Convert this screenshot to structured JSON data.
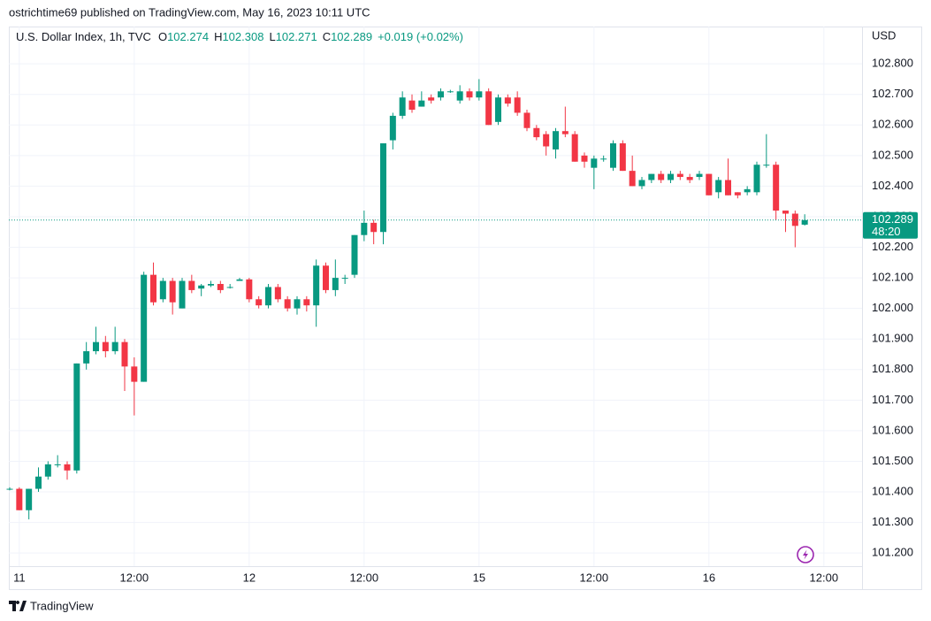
{
  "header": {
    "publisher": "ostrichtime69 published on TradingView.com, May 16, 2023 10:11 UTC"
  },
  "footer": {
    "brand": "TradingView"
  },
  "chart_data": {
    "type": "candlestick",
    "title": "U.S. Dollar Index, 1h, TVC",
    "ohlc_legend": [
      {
        "key": "O",
        "value": 102.274
      },
      {
        "key": "H",
        "value": 102.308
      },
      {
        "key": "L",
        "value": 102.271
      },
      {
        "key": "C",
        "value": 102.289
      }
    ],
    "change": "+0.019 (+0.02%)",
    "currency": "USD",
    "last_price": 102.289,
    "countdown": "48:20",
    "up_color": "#089981",
    "down_color": "#f23645",
    "grid": true,
    "categories": [
      null,
      "11",
      null,
      null,
      null,
      null,
      null,
      null,
      null,
      null,
      null,
      null,
      null,
      "12:00",
      null,
      null,
      null,
      null,
      null,
      null,
      null,
      null,
      null,
      null,
      null,
      "12",
      null,
      null,
      null,
      null,
      null,
      null,
      null,
      null,
      null,
      null,
      null,
      "12:00",
      null,
      null,
      null,
      null,
      null,
      null,
      null,
      null,
      null,
      null,
      null,
      "15",
      null,
      null,
      null,
      null,
      null,
      null,
      null,
      null,
      null,
      null,
      null,
      "12:00",
      null,
      null,
      null,
      null,
      null,
      null,
      null,
      null,
      null,
      null,
      null,
      "16",
      null,
      null,
      null,
      null,
      null,
      null,
      null,
      null,
      null,
      null,
      null,
      "12:00"
    ],
    "open": [
      101.41,
      101.41,
      101.34,
      101.41,
      101.45,
      101.49,
      101.49,
      101.47,
      101.82,
      101.86,
      101.89,
      101.86,
      101.89,
      101.81,
      101.76,
      102.11,
      102.03,
      102.09,
      102.0,
      102.09,
      102.065,
      102.075,
      102.08,
      102.07,
      102.09,
      102.095,
      102.03,
      102.01,
      102.07,
      102.03,
      102.0,
      102.03,
      102.01,
      102.14,
      102.06,
      102.1,
      102.11,
      102.24,
      102.28,
      102.25,
      102.55,
      102.63,
      102.68,
      102.66,
      102.69,
      102.69,
      102.71,
      102.68,
      102.71,
      102.69,
      102.71,
      102.61,
      102.69,
      102.69,
      102.64,
      102.59,
      102.57,
      102.52,
      102.58,
      102.57,
      102.5,
      102.46,
      102.49,
      102.46,
      102.54,
      102.45,
      102.4,
      102.42,
      102.44,
      102.42,
      102.44,
      102.43,
      102.43,
      102.44,
      102.38,
      102.42,
      102.38,
      102.38,
      102.38,
      102.47,
      102.47,
      102.32,
      102.31,
      102.274,
      null,
      null
    ],
    "high": [
      101.415,
      101.415,
      101.41,
      101.48,
      101.5,
      101.52,
      101.5,
      101.82,
      101.89,
      101.94,
      101.91,
      101.94,
      101.9,
      101.84,
      102.12,
      102.15,
      102.1,
      102.1,
      102.1,
      102.11,
      102.08,
      102.09,
      102.09,
      102.08,
      102.1,
      102.1,
      102.04,
      102.08,
      102.08,
      102.04,
      102.04,
      102.04,
      102.16,
      102.15,
      102.16,
      102.11,
      102.24,
      102.32,
      102.29,
      102.54,
      102.64,
      102.71,
      102.7,
      102.71,
      102.7,
      102.72,
      102.715,
      102.73,
      102.72,
      102.75,
      102.72,
      102.7,
      102.7,
      102.71,
      102.65,
      102.6,
      102.58,
      102.59,
      102.66,
      102.58,
      102.51,
      102.5,
      102.5,
      102.55,
      102.55,
      102.5,
      102.43,
      102.44,
      102.45,
      102.45,
      102.45,
      102.44,
      102.45,
      102.44,
      102.43,
      102.49,
      102.38,
      102.4,
      102.48,
      102.57,
      102.48,
      102.32,
      102.32,
      102.308,
      null,
      null
    ],
    "low": [
      101.405,
      101.34,
      101.31,
      101.4,
      101.44,
      101.48,
      101.44,
      101.46,
      101.8,
      101.85,
      101.84,
      101.85,
      101.73,
      101.65,
      101.76,
      102.01,
      102.02,
      101.98,
      102.0,
      102.05,
      102.04,
      102.07,
      102.05,
      102.065,
      102.09,
      102.02,
      102.0,
      102.0,
      102.02,
      101.99,
      101.98,
      101.99,
      101.94,
      102.05,
      102.04,
      102.08,
      102.1,
      102.22,
      102.21,
      102.21,
      102.52,
      102.62,
      102.64,
      102.66,
      102.67,
      102.68,
      102.705,
      102.67,
      102.68,
      102.68,
      102.6,
      102.6,
      102.66,
      102.63,
      102.58,
      102.55,
      102.5,
      102.49,
      102.56,
      102.48,
      102.46,
      102.39,
      102.48,
      102.45,
      102.45,
      102.4,
      102.39,
      102.41,
      102.41,
      102.41,
      102.42,
      102.41,
      102.42,
      102.37,
      102.36,
      102.37,
      102.36,
      102.37,
      102.37,
      102.46,
      102.29,
      102.25,
      102.2,
      102.271,
      null,
      null
    ],
    "close": [
      101.41,
      101.34,
      101.41,
      101.45,
      101.49,
      101.49,
      101.47,
      101.82,
      101.86,
      101.89,
      101.86,
      101.89,
      101.81,
      101.76,
      102.11,
      102.02,
      102.09,
      102.02,
      102.09,
      102.06,
      102.075,
      102.08,
      102.06,
      102.07,
      102.095,
      102.03,
      102.01,
      102.07,
      102.03,
      102.0,
      102.03,
      102.01,
      102.14,
      102.06,
      102.1,
      102.1,
      102.24,
      102.28,
      102.25,
      102.54,
      102.63,
      102.69,
      102.65,
      102.68,
      102.68,
      102.71,
      102.71,
      102.71,
      102.69,
      102.71,
      102.6,
      102.69,
      102.67,
      102.64,
      102.59,
      102.56,
      102.53,
      102.58,
      102.57,
      102.48,
      102.48,
      102.49,
      102.49,
      102.54,
      102.45,
      102.4,
      102.42,
      102.44,
      102.42,
      102.44,
      102.43,
      102.42,
      102.44,
      102.37,
      102.42,
      102.37,
      102.37,
      102.39,
      102.47,
      102.47,
      102.32,
      102.31,
      102.27,
      102.289,
      null,
      null
    ],
    "ylim": [
      101.157,
      102.922
    ],
    "yticks": [
      {
        "value": 101.2,
        "label": "101.200"
      },
      {
        "value": 101.3,
        "label": "101.300"
      },
      {
        "value": 101.4,
        "label": "101.400"
      },
      {
        "value": 101.5,
        "label": "101.500"
      },
      {
        "value": 101.6,
        "label": "101.600"
      },
      {
        "value": 101.7,
        "label": "101.700"
      },
      {
        "value": 101.8,
        "label": "101.800"
      },
      {
        "value": 101.9,
        "label": "101.900"
      },
      {
        "value": 102.0,
        "label": "102.000"
      },
      {
        "value": 102.1,
        "label": "102.100"
      },
      {
        "value": 102.2,
        "label": "102.200"
      },
      {
        "value": 102.3,
        "label": "102.300"
      },
      {
        "value": 102.4,
        "label": "102.400"
      },
      {
        "value": 102.5,
        "label": "102.500"
      },
      {
        "value": 102.6,
        "label": "102.600"
      },
      {
        "value": 102.7,
        "label": "102.700"
      },
      {
        "value": 102.8,
        "label": "102.800"
      }
    ]
  }
}
